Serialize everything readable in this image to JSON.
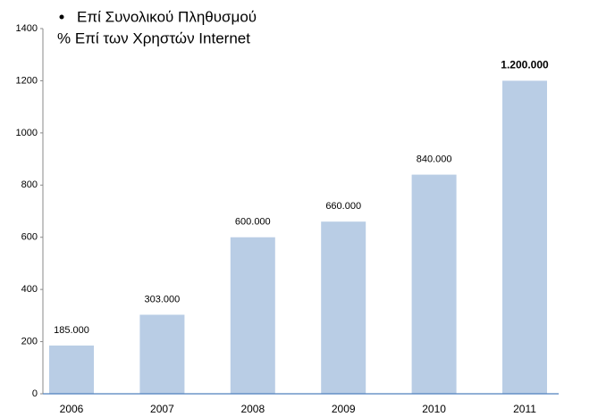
{
  "chart_data": {
    "type": "bar",
    "title": "Επί Συνολικού Πληθυσμού",
    "subtitle": "% Επί των Χρηστών Internet",
    "categories": [
      "2006",
      "2007",
      "2008",
      "2009",
      "2010",
      "2011"
    ],
    "values": [
      185,
      303,
      600,
      660,
      840,
      1200
    ],
    "value_labels": [
      "185.000",
      "303.000",
      "600.000",
      "660.000",
      "840.000",
      "1.200.000"
    ],
    "color": "#b9cde5",
    "ylim": [
      0,
      1400
    ],
    "yticks": [
      0,
      200,
      400,
      600,
      800,
      1000,
      1200,
      1400
    ],
    "grid": false
  }
}
